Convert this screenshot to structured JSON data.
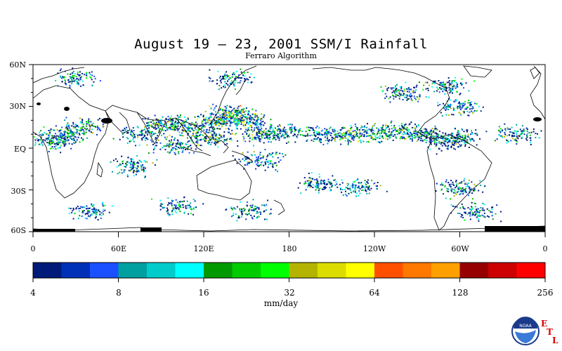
{
  "title": "August 19 – 23, 2001 SSM/I Rainfall",
  "subtitle": "Ferraro Algorithm",
  "lat_labels": [
    "60N",
    "30N",
    "EQ",
    "30S",
    "60S"
  ],
  "lon_labels": [
    "0",
    "60E",
    "120E",
    "180",
    "120W",
    "60W",
    "0"
  ],
  "colorbar": {
    "colors": [
      "#001a7a",
      "#0030b8",
      "#1a50ff",
      "#00a0a0",
      "#00cccc",
      "#00ffff",
      "#009900",
      "#00cc00",
      "#00ff00",
      "#b4b400",
      "#dcdc00",
      "#ffff00",
      "#ff5000",
      "#ff7800",
      "#ffa000",
      "#960000",
      "#cc0000",
      "#ff0000"
    ],
    "tick_labels": [
      "4",
      "8",
      "16",
      "32",
      "64",
      "128",
      "256"
    ],
    "units": "mm/day"
  },
  "logo": {
    "text": "NOAA",
    "lab_letters": [
      "E",
      "T",
      "L"
    ]
  },
  "rain_regions": [
    {
      "lon": 20,
      "lat": 10,
      "intensity": 0.5
    },
    {
      "lon": 35,
      "lat": 15,
      "intensity": 0.4
    },
    {
      "lon": 15,
      "lat": 5,
      "intensity": 0.4
    },
    {
      "lon": 90,
      "lat": 18,
      "intensity": 0.6
    },
    {
      "lon": 75,
      "lat": 10,
      "intensity": 0.4
    },
    {
      "lon": 110,
      "lat": 15,
      "intensity": 0.6
    },
    {
      "lon": 130,
      "lat": 20,
      "intensity": 0.7
    },
    {
      "lon": 140,
      "lat": 25,
      "intensity": 0.7
    },
    {
      "lon": 150,
      "lat": 20,
      "intensity": 0.6
    },
    {
      "lon": 125,
      "lat": 8,
      "intensity": 0.6
    },
    {
      "lon": 100,
      "lat": 2,
      "intensity": 0.4
    },
    {
      "lon": 160,
      "lat": 10,
      "intensity": 0.5
    },
    {
      "lon": 175,
      "lat": 12,
      "intensity": 0.4
    },
    {
      "lon": 200,
      "lat": 10,
      "intensity": 0.4
    },
    {
      "lon": 220,
      "lat": 10,
      "intensity": 0.5
    },
    {
      "lon": 240,
      "lat": 11,
      "intensity": 0.5
    },
    {
      "lon": 260,
      "lat": 12,
      "intensity": 0.5
    },
    {
      "lon": 275,
      "lat": 10,
      "intensity": 0.5
    },
    {
      "lon": 290,
      "lat": 5,
      "intensity": 0.4
    },
    {
      "lon": 300,
      "lat": 8,
      "intensity": 0.4
    },
    {
      "lon": 340,
      "lat": 10,
      "intensity": 0.4
    },
    {
      "lon": 70,
      "lat": -12,
      "intensity": 0.4
    },
    {
      "lon": 160,
      "lat": -8,
      "intensity": 0.4
    },
    {
      "lon": 200,
      "lat": -25,
      "intensity": 0.4
    },
    {
      "lon": 230,
      "lat": -28,
      "intensity": 0.4
    },
    {
      "lon": 300,
      "lat": -28,
      "intensity": 0.4
    },
    {
      "lon": 40,
      "lat": -45,
      "intensity": 0.3
    },
    {
      "lon": 100,
      "lat": -42,
      "intensity": 0.3
    },
    {
      "lon": 150,
      "lat": -45,
      "intensity": 0.3
    },
    {
      "lon": 310,
      "lat": -45,
      "intensity": 0.3
    },
    {
      "lon": 260,
      "lat": 40,
      "intensity": 0.4
    },
    {
      "lon": 290,
      "lat": 45,
      "intensity": 0.4
    },
    {
      "lon": 300,
      "lat": 30,
      "intensity": 0.4
    },
    {
      "lon": 140,
      "lat": 50,
      "intensity": 0.3
    },
    {
      "lon": 30,
      "lat": 50,
      "intensity": 0.3
    }
  ]
}
